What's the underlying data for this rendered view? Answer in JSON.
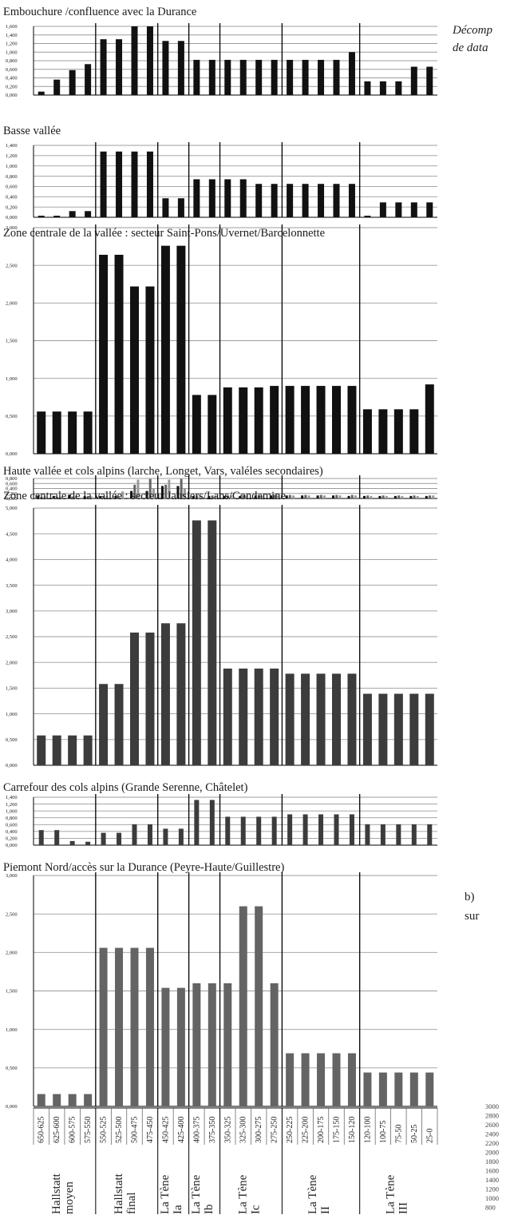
{
  "x_categories": [
    "650-625",
    "625-600",
    "600-575",
    "575-550",
    "550-525",
    "525-500",
    "500-475",
    "475-450",
    "450-425",
    "425-400",
    "400-375",
    "375-350",
    "350-325",
    "325-300",
    "300-275",
    "275-250",
    "250-225",
    "225-200",
    "200-175",
    "175-150",
    "150-120",
    "120-100",
    "100-75",
    "75-50",
    "50-25",
    "25-0"
  ],
  "periods": [
    {
      "lines": [
        "Hallstatt",
        "moyen"
      ]
    },
    {
      "lines": [
        "Hallstatt",
        "final"
      ]
    },
    {
      "lines": [
        "La Tène",
        "Ia"
      ]
    },
    {
      "lines": [
        "La Tène",
        "Ib"
      ]
    },
    {
      "lines": [
        "La Tène",
        "Ic"
      ]
    },
    {
      "lines": [
        "La Tène",
        "II"
      ]
    },
    {
      "lines": [
        "La Tène",
        "III"
      ]
    }
  ],
  "side_text": {
    "italic_line1": "Décomp",
    "italic_line2": "de data",
    "b_line1": "b)",
    "b_line2": "sur"
  },
  "right_axis_ticks": [
    "3000",
    "2800",
    "2600",
    "2400",
    "2200",
    "2000",
    "1800",
    "1600",
    "1400",
    "1200",
    "1000",
    "800"
  ],
  "colors": {
    "bar_dark": "#111111",
    "bar_mid": "#3c3c3c",
    "bar_gray": "#646464",
    "bar_light": "#9a9a9a",
    "grid": "#9c9c9c"
  },
  "chart_data": [
    {
      "type": "bar",
      "title": "Embouchure /confluence avec la Durance",
      "ylim": [
        0,
        1.6
      ],
      "yticks": [
        "0,000",
        "0,200",
        "0,400",
        "0,600",
        "0,800",
        "1,000",
        "1,200",
        "1,400",
        "1,600"
      ],
      "values": [
        0.08,
        0.36,
        0.58,
        0.72,
        1.3,
        1.3,
        1.6,
        1.6,
        1.26,
        1.26,
        0.82,
        0.82,
        0.82,
        0.82,
        0.82,
        0.82,
        0.82,
        0.82,
        0.82,
        0.82,
        1.0,
        0.32,
        0.32,
        0.32,
        0.66,
        0.66
      ]
    },
    {
      "type": "bar",
      "title": "Basse vallée",
      "ylim": [
        0,
        1.4
      ],
      "yticks": [
        "0,000",
        "0,200",
        "0,400",
        "0,600",
        "0,800",
        "1,000",
        "1,200",
        "1,400"
      ],
      "values": [
        0.03,
        0.03,
        0.12,
        0.12,
        1.28,
        1.28,
        1.28,
        1.28,
        0.37,
        0.37,
        0.74,
        0.74,
        0.74,
        0.74,
        0.65,
        0.65,
        0.65,
        0.65,
        0.65,
        0.65,
        0.65,
        0.03,
        0.29,
        0.29,
        0.29,
        0.29
      ]
    },
    {
      "type": "bar",
      "title": "Zone centrale de la vallée : secteur Saint-Pons/Uvernet/Barcelonnette",
      "ylim": [
        0,
        3.0
      ],
      "yticks": [
        "0,000",
        "0,500",
        "1,000",
        "1,500",
        "2,000",
        "2,500",
        "3,000"
      ],
      "values": [
        0.56,
        0.56,
        0.56,
        0.56,
        2.64,
        2.64,
        2.22,
        2.22,
        2.76,
        2.76,
        0.78,
        0.78,
        0.88,
        0.88,
        0.88,
        0.9,
        0.9,
        0.9,
        0.9,
        0.9,
        0.9,
        0.59,
        0.59,
        0.59,
        0.59,
        0.92
      ]
    },
    {
      "type": "bar",
      "title": "Haute vallée et cols alpins (larche, Longet, Vars, valéles secondaires)",
      "ylim": [
        0,
        0.8
      ],
      "yticks": [
        "0,000",
        "0,200",
        "0,400",
        "0,600",
        "0,800"
      ],
      "series": [
        {
          "values": [
            0.12,
            0.1,
            0.15,
            0.1,
            0.1,
            0.1,
            0.3,
            0.3,
            0.5,
            0.5,
            0.1,
            0.1,
            0.1,
            0.1,
            0.12,
            0.12,
            0.12,
            0.12,
            0.12,
            0.12,
            0.1,
            0.1,
            0.1,
            0.1,
            0.1,
            0.1
          ]
        },
        {
          "values": [
            0.06,
            0.06,
            0.08,
            0.08,
            0.08,
            0.05,
            0.55,
            0.78,
            0.55,
            0.78,
            0.12,
            0.12,
            0.12,
            0.14,
            0.14,
            0.14,
            0.14,
            0.14,
            0.14,
            0.14,
            0.14,
            0.12,
            0.12,
            0.12,
            0.12,
            0.12
          ]
        },
        {
          "values": [
            0.1,
            0.08,
            0.1,
            0.08,
            0.1,
            0.28,
            0.75,
            0.4,
            0.75,
            0.4,
            0.12,
            0.12,
            0.12,
            0.12,
            0.12,
            0.12,
            0.12,
            0.12,
            0.12,
            0.12,
            0.12,
            0.1,
            0.1,
            0.1,
            0.1,
            0.12
          ]
        }
      ]
    },
    {
      "type": "bar",
      "title": "Zone centrale de la vallée : secteur Jausiers/Lans/Condamine",
      "ylim": [
        0,
        5.0
      ],
      "yticks": [
        "0,000",
        "0,500",
        "1,000",
        "1,500",
        "2,000",
        "2,500",
        "3,000",
        "3,500",
        "4,000",
        "4,500",
        "5,000"
      ],
      "values": [
        0.58,
        0.58,
        0.58,
        0.58,
        1.58,
        1.58,
        2.58,
        2.58,
        2.76,
        2.76,
        4.76,
        4.76,
        1.88,
        1.88,
        1.88,
        1.88,
        1.78,
        1.78,
        1.78,
        1.78,
        1.78,
        1.39,
        1.39,
        1.39,
        1.39,
        1.39
      ]
    },
    {
      "type": "bar",
      "title": "Carrefour des cols alpins (Grande Serenne, Châtelet)",
      "ylim": [
        0,
        1.4
      ],
      "yticks": [
        "0,000",
        "0,200",
        "0,400",
        "0,600",
        "0,800",
        "1,000",
        "1,200",
        "1,400"
      ],
      "values": [
        0.44,
        0.44,
        0.12,
        0.1,
        0.36,
        0.36,
        0.61,
        0.61,
        0.48,
        0.48,
        1.32,
        1.32,
        0.83,
        0.83,
        0.83,
        0.83,
        0.9,
        0.9,
        0.9,
        0.9,
        0.9,
        0.61,
        0.61,
        0.61,
        0.61,
        0.61
      ]
    },
    {
      "type": "bar",
      "title": "Piemont Nord/accès sur la Durance (Peyre-Haute/Guillestre)",
      "ylim": [
        0,
        3.0
      ],
      "yticks": [
        "0,000",
        "0,500",
        "1,000",
        "1,500",
        "2,000",
        "2,500",
        "3,000"
      ],
      "values": [
        0.16,
        0.16,
        0.16,
        0.16,
        2.06,
        2.06,
        2.06,
        2.06,
        1.54,
        1.54,
        1.6,
        1.6,
        1.6,
        2.6,
        2.6,
        1.6,
        0.69,
        0.69,
        0.69,
        0.69,
        0.69,
        0.44,
        0.44,
        0.44,
        0.44,
        0.44
      ]
    }
  ]
}
